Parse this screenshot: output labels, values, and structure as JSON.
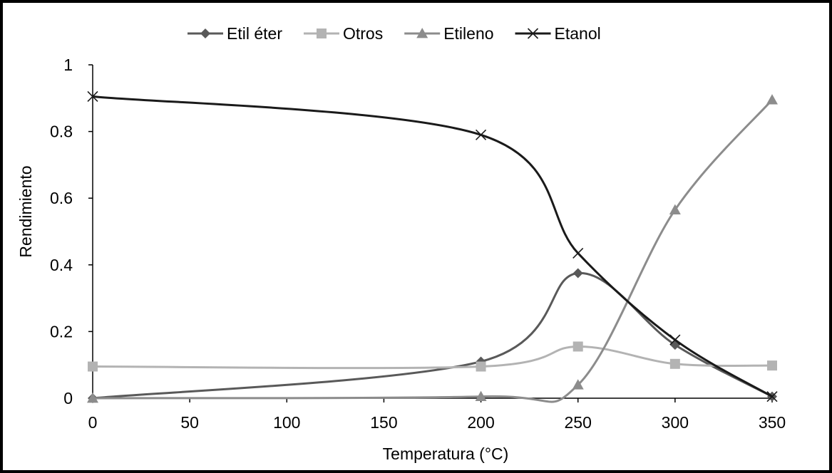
{
  "chart_data": {
    "type": "line",
    "title": "",
    "xlabel": "Temperatura (°C)",
    "ylabel": "Rendimiento",
    "x": [
      0,
      200,
      250,
      300,
      350
    ],
    "xlim": [
      0,
      350
    ],
    "ylim": [
      0,
      1
    ],
    "x_ticks": [
      "0",
      "50",
      "100",
      "150",
      "200",
      "250",
      "300",
      "350"
    ],
    "y_ticks": [
      "0",
      "0.2",
      "0.4",
      "0.6",
      "0.8",
      "1"
    ],
    "grid": false,
    "smooth": true,
    "legend_position": "top",
    "series": [
      {
        "name": "Etil éter",
        "marker": "diamond",
        "color": "#595959",
        "values": [
          0.0,
          0.11,
          0.375,
          0.16,
          0.005
        ]
      },
      {
        "name": "Otros",
        "marker": "square",
        "color": "#b3b3b3",
        "values": [
          0.095,
          0.095,
          0.155,
          0.103,
          0.098
        ]
      },
      {
        "name": "Etileno",
        "marker": "triangle",
        "color": "#8c8c8c",
        "values": [
          0.0,
          0.005,
          0.04,
          0.565,
          0.895
        ]
      },
      {
        "name": "Etanol",
        "marker": "x",
        "color": "#1a1a1a",
        "values": [
          0.905,
          0.79,
          0.435,
          0.175,
          0.005
        ]
      }
    ]
  }
}
